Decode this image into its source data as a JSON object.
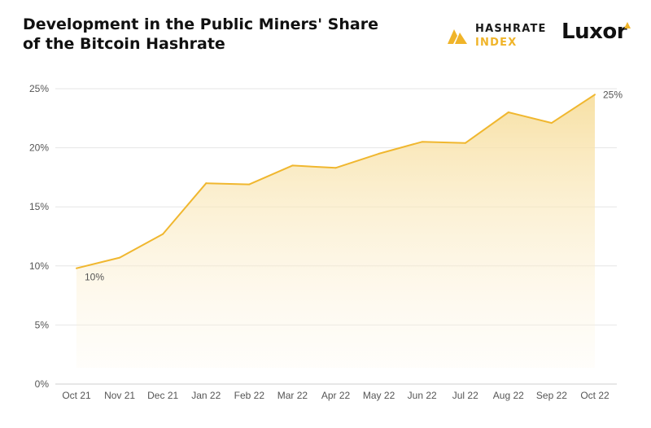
{
  "header": {
    "title": "Development in the Public Miners' Share of the Bitcoin Hashrate",
    "brand1_line1": "HASHRATE",
    "brand1_line2": "INDEX",
    "brand2": "Luxor"
  },
  "colors": {
    "line": "#f0b72f",
    "fill_top": "#f7dfa0",
    "grid": "#e6e6e6",
    "accent": "#f0b429"
  },
  "chart_data": {
    "type": "area",
    "title": "Development in the Public Miners' Share of the Bitcoin Hashrate",
    "xlabel": "",
    "ylabel": "",
    "categories": [
      "Oct 21",
      "Nov 21",
      "Dec 21",
      "Jan 22",
      "Feb 22",
      "Mar 22",
      "Apr 22",
      "May 22",
      "Jun 22",
      "Jul 22",
      "Aug 22",
      "Sep 22",
      "Oct 22"
    ],
    "values": [
      9.8,
      10.7,
      12.7,
      17.0,
      16.9,
      18.5,
      18.3,
      19.5,
      20.5,
      20.4,
      23.0,
      22.1,
      24.5
    ],
    "ylim": [
      0,
      25
    ],
    "yticks": [
      0,
      5,
      10,
      15,
      20,
      25
    ],
    "ytick_labels": [
      "0%",
      "5%",
      "10%",
      "15%",
      "20%",
      "25%"
    ],
    "grid": true,
    "legend": "none",
    "annotations": [
      {
        "index": 0,
        "text": "10%"
      },
      {
        "index": 12,
        "text": "25%"
      }
    ]
  }
}
